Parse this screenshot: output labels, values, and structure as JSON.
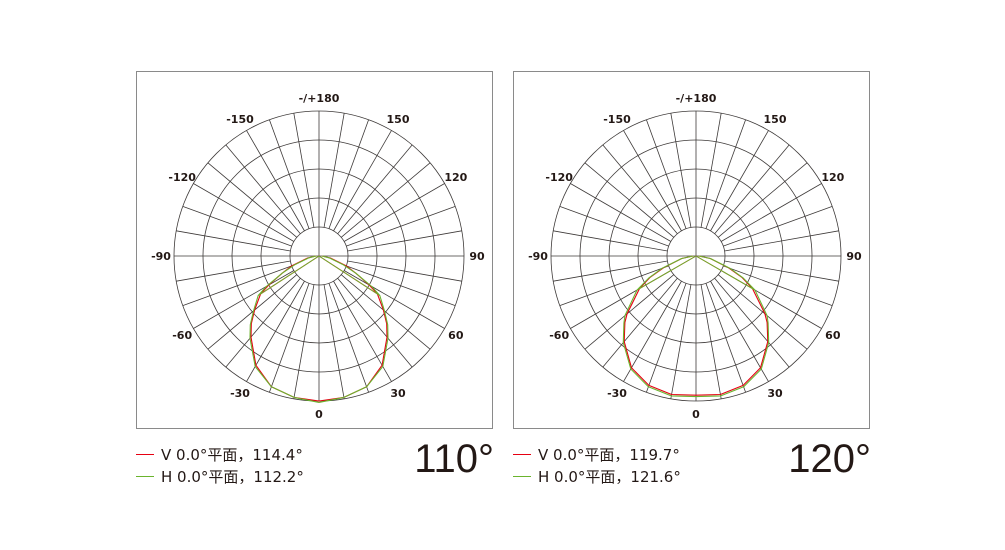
{
  "chart_data": [
    {
      "type": "polar",
      "angle_tick_labels": [
        "-/+180",
        "150",
        "120",
        "90",
        "60",
        "30",
        "0",
        "-30",
        "-60",
        "-90",
        "-120",
        "-150"
      ],
      "radial_range": [
        0,
        100
      ],
      "grid": true,
      "legend_placement": "bottom-left",
      "beam_angle_label": "110°",
      "series": [
        {
          "name": "V 0.0°平面，114.4°",
          "color": "#e60012",
          "points": [
            [
              0,
              100
            ],
            [
              10,
              99
            ],
            [
              20,
              96
            ],
            [
              30,
              87
            ],
            [
              40,
              73
            ],
            [
              45,
              66
            ],
            [
              50,
              58
            ],
            [
              57,
              48
            ],
            [
              60,
              40
            ],
            [
              65,
              28
            ],
            [
              70,
              20
            ],
            [
              80,
              8
            ],
            [
              90,
              2
            ]
          ]
        },
        {
          "name": "H 0.0°平面，112.2°",
          "color": "#6ab42d",
          "points": [
            [
              0,
              101
            ],
            [
              10,
              99
            ],
            [
              20,
              96
            ],
            [
              30,
              88
            ],
            [
              40,
              74
            ],
            [
              45,
              67
            ],
            [
              50,
              59
            ],
            [
              57,
              50
            ],
            [
              60,
              42
            ],
            [
              65,
              28
            ],
            [
              70,
              18
            ],
            [
              80,
              7
            ],
            [
              90,
              2
            ]
          ]
        }
      ]
    },
    {
      "type": "polar",
      "angle_tick_labels": [
        "-/+180",
        "150",
        "120",
        "90",
        "60",
        "30",
        "0",
        "-30",
        "-60",
        "-90",
        "-120",
        "-150"
      ],
      "radial_range": [
        0,
        100
      ],
      "grid": true,
      "legend_placement": "bottom-left",
      "beam_angle_label": "120°",
      "series": [
        {
          "name": "V 0.0°平面，119.7°",
          "color": "#e60012",
          "points": [
            [
              0,
              96
            ],
            [
              10,
              97
            ],
            [
              20,
              95
            ],
            [
              30,
              89
            ],
            [
              40,
              77
            ],
            [
              47,
              67
            ],
            [
              50,
              62
            ],
            [
              60,
              45
            ],
            [
              65,
              35
            ],
            [
              70,
              24
            ],
            [
              80,
              10
            ],
            [
              90,
              2
            ]
          ]
        },
        {
          "name": "H 0.0°平面，121.6°",
          "color": "#6ab42d",
          "points": [
            [
              0,
              97
            ],
            [
              10,
              98
            ],
            [
              20,
              96
            ],
            [
              30,
              90
            ],
            [
              40,
              78
            ],
            [
              47,
              68
            ],
            [
              50,
              64
            ],
            [
              60,
              47
            ],
            [
              65,
              36
            ],
            [
              70,
              25
            ],
            [
              80,
              10
            ],
            [
              90,
              2
            ]
          ]
        }
      ]
    }
  ]
}
